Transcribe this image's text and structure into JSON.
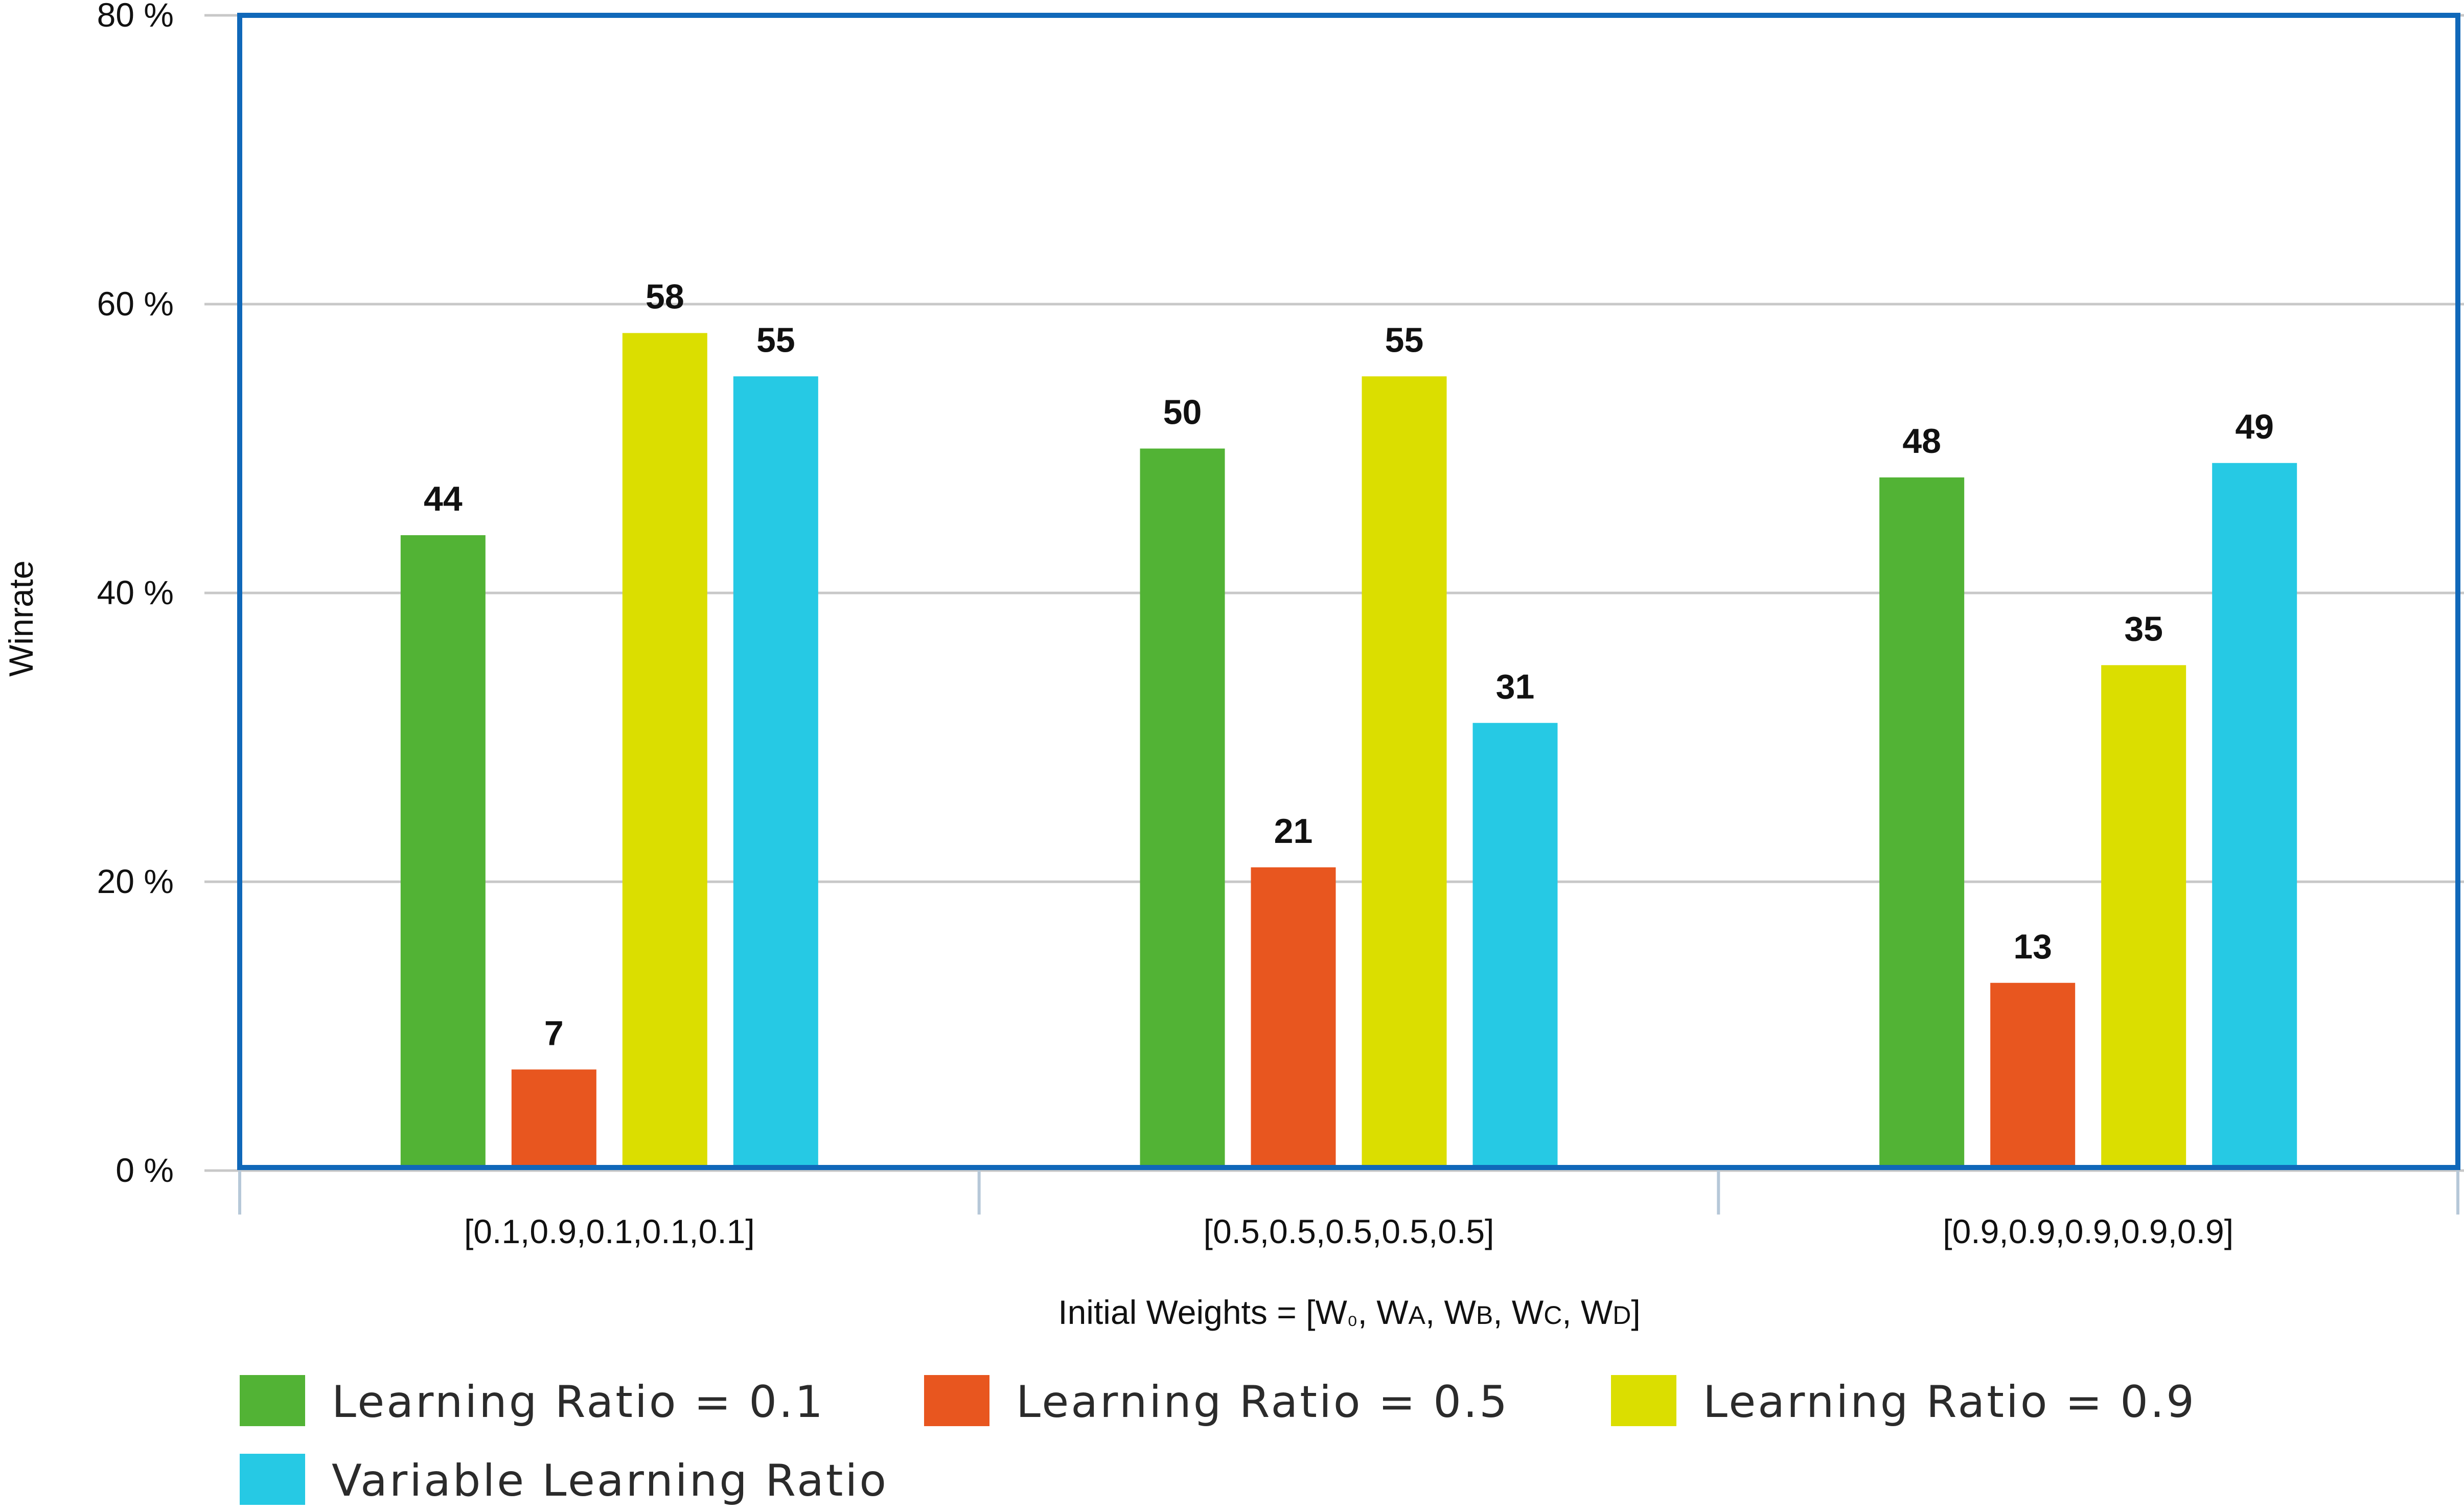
{
  "chart_data": {
    "type": "bar",
    "categories": [
      "[0.1,0.9,0.1,0.1,0.1]",
      "[0.5,0.5,0.5,0.5,0.5]",
      "[0.9,0.9,0.9,0.9,0.9]"
    ],
    "series": [
      {
        "name": "Learning Ratio = 0.1",
        "color": "#52b335",
        "values": [
          44,
          50,
          48
        ],
        "labels": [
          "44",
          "50",
          "48"
        ]
      },
      {
        "name": "Learning Ratio = 0.5",
        "color": "#e8561f",
        "values": [
          7,
          21,
          13
        ],
        "labels": [
          "7",
          "21",
          "13"
        ]
      },
      {
        "name": "Learning Ratio = 0.9",
        "color": "#dbde00",
        "values": [
          58,
          55,
          35
        ],
        "labels": [
          "58",
          "55",
          "35"
        ]
      },
      {
        "name": "Variable Learning Ratio",
        "color": "#26c9e4",
        "values": [
          55,
          31,
          49
        ],
        "labels": [
          "55",
          "31",
          "49"
        ]
      }
    ],
    "ylabel": "Winrate",
    "xlabel": "Initial Weights = [W₀, WA, WB, WC, WD]",
    "ylim": [
      0,
      80
    ],
    "yticks": [
      0,
      20,
      40,
      60,
      80
    ],
    "ytick_labels": [
      "0 %",
      "20 %",
      "40 %",
      "60 %",
      "80 %"
    ],
    "grid": true,
    "legend_position": "bottom",
    "frame_color": "#1068b9",
    "grid_color": "#c8c8c8"
  }
}
